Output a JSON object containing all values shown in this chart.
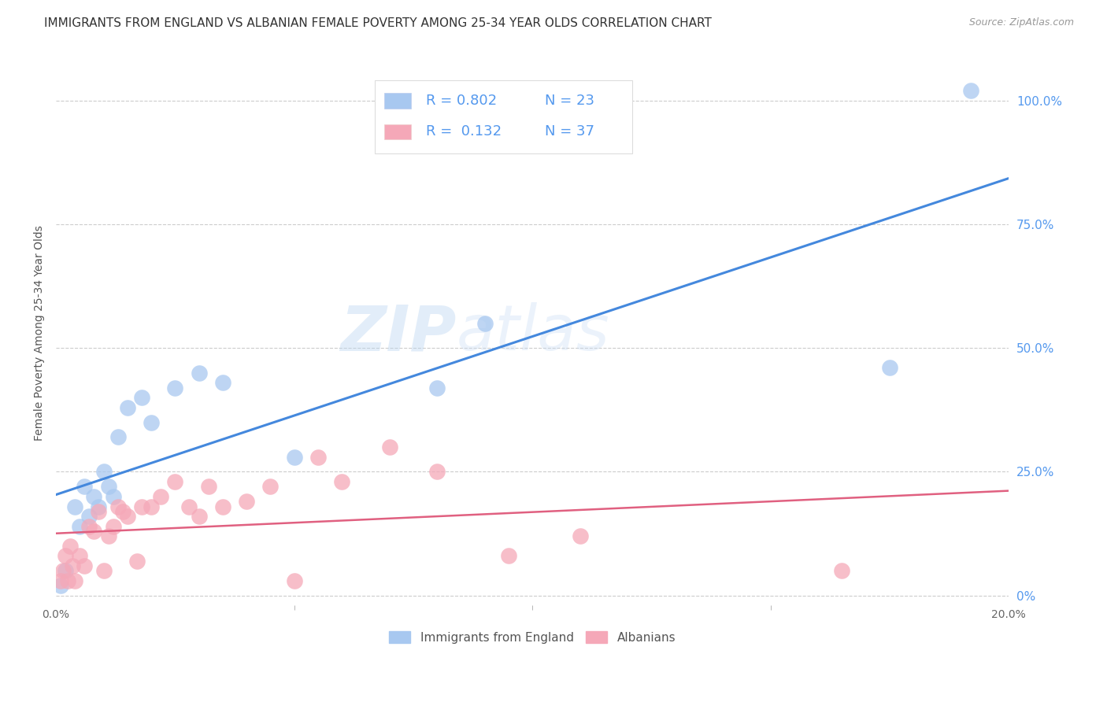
{
  "title": "IMMIGRANTS FROM ENGLAND VS ALBANIAN FEMALE POVERTY AMONG 25-34 YEAR OLDS CORRELATION CHART",
  "source": "Source: ZipAtlas.com",
  "ylabel": "Female Poverty Among 25-34 Year Olds",
  "xlim": [
    0.0,
    20.0
  ],
  "ylim": [
    -2.0,
    108.0
  ],
  "yticks_right": [
    0.0,
    25.0,
    50.0,
    75.0,
    100.0
  ],
  "ytick_labels_right": [
    "0%",
    "25.0%",
    "50.0%",
    "75.0%",
    "100.0%"
  ],
  "watermark_zip": "ZIP",
  "watermark_atlas": "atlas",
  "series1_label": "Immigrants from England",
  "series1_R": "0.802",
  "series1_N": "23",
  "series1_color": "#A8C8F0",
  "series1_edge_color": "#A8C8F0",
  "series1_line_color": "#4488DD",
  "series1_x": [
    0.1,
    0.2,
    0.4,
    0.5,
    0.6,
    0.7,
    0.8,
    0.9,
    1.0,
    1.1,
    1.2,
    1.3,
    1.5,
    1.8,
    2.0,
    2.5,
    3.0,
    3.5,
    5.0,
    8.0,
    9.0,
    17.5,
    19.2
  ],
  "series1_y": [
    2.0,
    5.0,
    18.0,
    14.0,
    22.0,
    16.0,
    20.0,
    18.0,
    25.0,
    22.0,
    20.0,
    32.0,
    38.0,
    40.0,
    35.0,
    42.0,
    45.0,
    43.0,
    28.0,
    42.0,
    55.0,
    46.0,
    102.0
  ],
  "series2_label": "Albanians",
  "series2_R": "0.132",
  "series2_N": "37",
  "series2_color": "#F5A8B8",
  "series2_edge_color": "#F5A8B8",
  "series2_line_color": "#E06080",
  "series2_x": [
    0.1,
    0.15,
    0.2,
    0.25,
    0.3,
    0.35,
    0.4,
    0.5,
    0.6,
    0.7,
    0.8,
    0.9,
    1.0,
    1.1,
    1.2,
    1.3,
    1.4,
    1.5,
    1.7,
    1.8,
    2.0,
    2.2,
    2.5,
    2.8,
    3.0,
    3.2,
    3.5,
    4.0,
    4.5,
    5.0,
    5.5,
    6.0,
    7.0,
    8.0,
    9.5,
    11.0,
    16.5
  ],
  "series2_y": [
    3.0,
    5.0,
    8.0,
    3.0,
    10.0,
    6.0,
    3.0,
    8.0,
    6.0,
    14.0,
    13.0,
    17.0,
    5.0,
    12.0,
    14.0,
    18.0,
    17.0,
    16.0,
    7.0,
    18.0,
    18.0,
    20.0,
    23.0,
    18.0,
    16.0,
    22.0,
    18.0,
    19.0,
    22.0,
    3.0,
    28.0,
    23.0,
    30.0,
    25.0,
    8.0,
    12.0,
    5.0
  ],
  "background_color": "#FFFFFF",
  "grid_color": "#CCCCCC",
  "title_color": "#333333",
  "axis_label_color": "#555555",
  "right_tick_color": "#5599EE",
  "title_fontsize": 11,
  "source_fontsize": 9,
  "axis_label_fontsize": 10,
  "tick_fontsize": 10,
  "legend_fontsize": 13
}
